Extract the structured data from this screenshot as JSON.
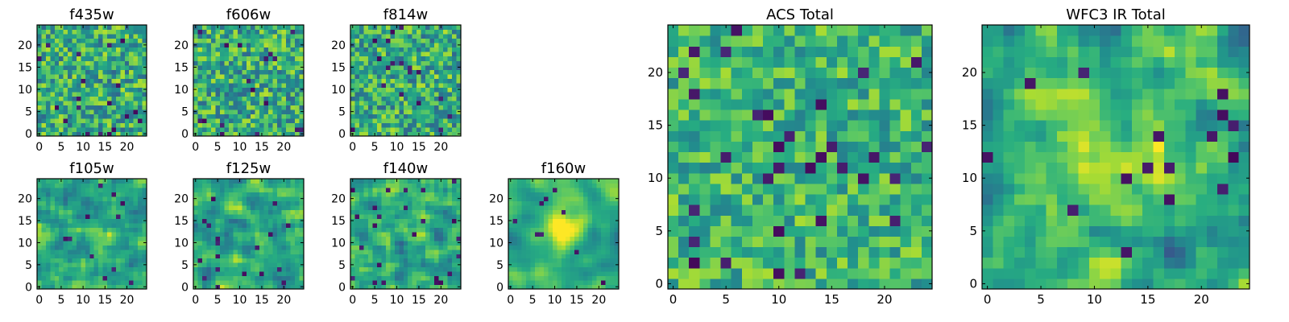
{
  "chart_data": [
    {
      "type": "heatmap",
      "title": "f435w",
      "xlim": [
        0,
        24
      ],
      "ylim": [
        0,
        24
      ],
      "x_ticks": [
        0,
        5,
        10,
        15,
        20
      ],
      "y_ticks": [
        0,
        5,
        10,
        15,
        20
      ],
      "grid_size": 25,
      "colormap": "viridis",
      "grid": false
    },
    {
      "type": "heatmap",
      "title": "f606w",
      "xlim": [
        0,
        24
      ],
      "ylim": [
        0,
        24
      ],
      "x_ticks": [
        0,
        5,
        10,
        15,
        20
      ],
      "y_ticks": [
        0,
        5,
        10,
        15,
        20
      ],
      "grid_size": 25,
      "colormap": "viridis",
      "grid": false
    },
    {
      "type": "heatmap",
      "title": "f814w",
      "xlim": [
        0,
        24
      ],
      "ylim": [
        0,
        24
      ],
      "x_ticks": [
        0,
        5,
        10,
        15,
        20
      ],
      "y_ticks": [
        0,
        5,
        10,
        15,
        20
      ],
      "grid_size": 25,
      "colormap": "viridis",
      "grid": false
    },
    {
      "type": "heatmap",
      "title": "f105w",
      "xlim": [
        0,
        24
      ],
      "ylim": [
        0,
        24
      ],
      "x_ticks": [
        0,
        5,
        10,
        15,
        20
      ],
      "y_ticks": [
        0,
        5,
        10,
        15,
        20
      ],
      "grid_size": 25,
      "colormap": "viridis",
      "grid": false
    },
    {
      "type": "heatmap",
      "title": "f125w",
      "xlim": [
        0,
        24
      ],
      "ylim": [
        0,
        24
      ],
      "x_ticks": [
        0,
        5,
        10,
        15,
        20
      ],
      "y_ticks": [
        0,
        5,
        10,
        15,
        20
      ],
      "grid_size": 25,
      "colormap": "viridis",
      "grid": false
    },
    {
      "type": "heatmap",
      "title": "f140w",
      "xlim": [
        0,
        24
      ],
      "ylim": [
        0,
        24
      ],
      "x_ticks": [
        0,
        5,
        10,
        15,
        20
      ],
      "y_ticks": [
        0,
        5,
        10,
        15,
        20
      ],
      "grid_size": 25,
      "colormap": "viridis",
      "grid": false
    },
    {
      "type": "heatmap",
      "title": "f160w",
      "xlim": [
        0,
        24
      ],
      "ylim": [
        0,
        24
      ],
      "x_ticks": [
        0,
        5,
        10,
        15,
        20
      ],
      "y_ticks": [
        0,
        5,
        10,
        15,
        20
      ],
      "grid_size": 25,
      "colormap": "viridis",
      "grid": false
    },
    {
      "type": "heatmap",
      "title": "ACS Total",
      "xlim": [
        0,
        24
      ],
      "ylim": [
        0,
        24
      ],
      "x_ticks": [
        0,
        5,
        10,
        15,
        20
      ],
      "y_ticks": [
        0,
        5,
        10,
        15,
        20
      ],
      "grid_size": 25,
      "colormap": "viridis",
      "grid": false
    },
    {
      "type": "heatmap",
      "title": "WFC3 IR Total",
      "xlim": [
        0,
        24
      ],
      "ylim": [
        0,
        24
      ],
      "x_ticks": [
        0,
        5,
        10,
        15,
        20
      ],
      "y_ticks": [
        0,
        5,
        10,
        15,
        20
      ],
      "grid_size": 25,
      "colormap": "viridis",
      "grid": false
    }
  ],
  "colors": {
    "viridis_low": "#440154",
    "viridis_mid": "#21918c",
    "viridis_high": "#fde725"
  }
}
